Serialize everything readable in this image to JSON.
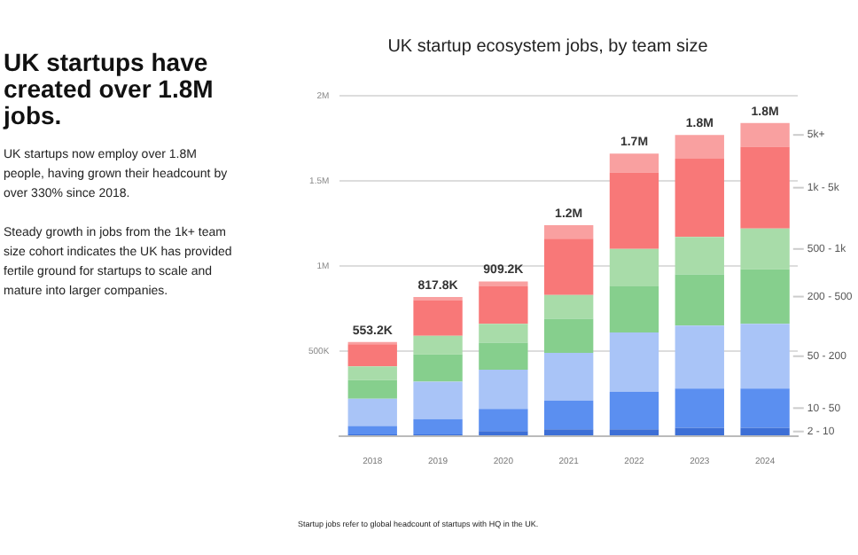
{
  "chart_data": {
    "type": "bar",
    "title": "UK startup ecosystem jobs, by team size",
    "stacked": true,
    "categories": [
      "2018",
      "2019",
      "2020",
      "2021",
      "2022",
      "2023",
      "2024"
    ],
    "series": [
      {
        "name": "2 - 10",
        "color": "#3d6fd6",
        "values": [
          10000,
          10000,
          30000,
          40000,
          40000,
          50000,
          50000
        ]
      },
      {
        "name": "10 - 50",
        "color": "#5b8ff0",
        "values": [
          50000,
          90000,
          130000,
          170000,
          220000,
          230000,
          230000
        ]
      },
      {
        "name": "50 - 200",
        "color": "#a9c4f7",
        "values": [
          160000,
          220000,
          230000,
          280000,
          350000,
          370000,
          380000
        ]
      },
      {
        "name": "200 - 500",
        "color": "#86cf8d",
        "values": [
          110000,
          160000,
          160000,
          200000,
          270000,
          300000,
          320000
        ]
      },
      {
        "name": "500 - 1k",
        "color": "#a8dca9",
        "values": [
          80000,
          110000,
          110000,
          140000,
          220000,
          220000,
          240000
        ]
      },
      {
        "name": "1k - 5k",
        "color": "#f87878",
        "values": [
          130000,
          210000,
          220000,
          330000,
          450000,
          460000,
          480000
        ]
      },
      {
        "name": "5k+",
        "color": "#f9a0a0",
        "values": [
          13200,
          17800,
          29200,
          80000,
          110000,
          140000,
          140000
        ]
      }
    ],
    "totals": [
      "553.2K",
      "817.8K",
      "909.2K",
      "1.2M",
      "1.7M",
      "1.8M",
      "1.8M"
    ],
    "ylim": [
      0,
      2000000
    ],
    "yticks": [
      {
        "value": 0,
        "label": null
      },
      {
        "value": 500000,
        "label": "500K"
      },
      {
        "value": 1000000,
        "label": "1M"
      },
      {
        "value": 1500000,
        "label": "1.5M"
      },
      {
        "value": 2000000,
        "label": "2M"
      }
    ],
    "grid": "y",
    "legend": "right",
    "annotations": [
      "UK startups have created over 1.8M jobs.",
      "UK startups now employ over 1.8M people, having grown their headcount by over 330% since 2018.",
      "Steady growth in jobs from the 1k+ team size cohort indicates the UK has provided fertile ground for startups to scale and mature into larger companies.",
      "Startup jobs refer to global headcount of startups with HQ in the UK."
    ]
  }
}
